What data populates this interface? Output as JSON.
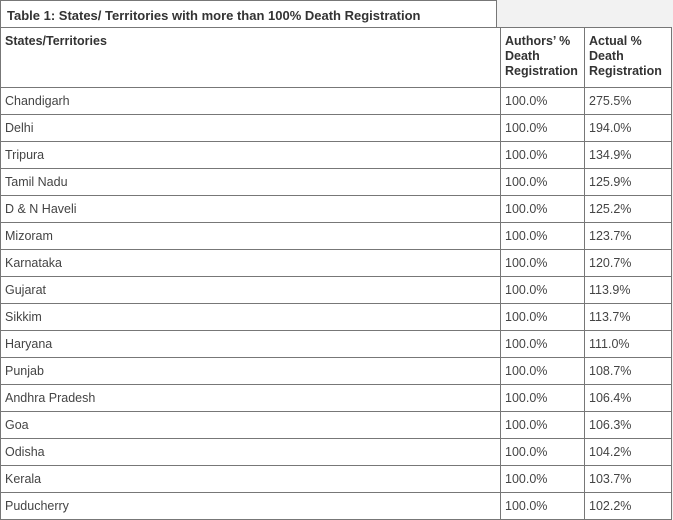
{
  "title": "Table 1: States/ Territories with more than 100% Death Registration",
  "table": {
    "header": [
      "States/Territories",
      "Authors’ % Death Registration",
      "Actual % Death Registration"
    ],
    "rows": [
      [
        "Chandigarh",
        "100.0%",
        "275.5%"
      ],
      [
        "Delhi",
        "100.0%",
        "194.0%"
      ],
      [
        "Tripura",
        "100.0%",
        "134.9%"
      ],
      [
        "Tamil Nadu",
        "100.0%",
        "125.9%"
      ],
      [
        "D & N Haveli",
        "100.0%",
        "125.2%"
      ],
      [
        "Mizoram",
        "100.0%",
        "123.7%"
      ],
      [
        "Karnataka",
        "100.0%",
        "120.7%"
      ],
      [
        "Gujarat",
        "100.0%",
        "113.9%"
      ],
      [
        "Sikkim",
        "100.0%",
        "113.7%"
      ],
      [
        "Haryana",
        "100.0%",
        "111.0%"
      ],
      [
        "Punjab",
        "100.0%",
        "108.7%"
      ],
      [
        "Andhra Pradesh",
        "100.0%",
        "106.4%"
      ],
      [
        "Goa",
        "100.0%",
        "106.3%"
      ],
      [
        "Odisha",
        "100.0%",
        "104.2%"
      ],
      [
        "Kerala",
        "100.0%",
        "103.7%"
      ],
      [
        "Puducherry",
        "100.0%",
        "102.2%"
      ]
    ]
  }
}
